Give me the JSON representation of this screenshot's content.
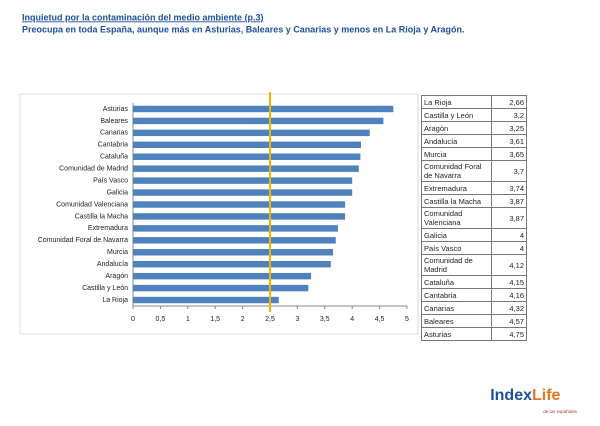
{
  "header": {
    "title": "Inquietud por la contaminación  del medio ambiente (p.3)",
    "subtitle": "Preocupa en toda España, aunque más en Asturias, Baleares y Canarias y menos en La Rioja y Aragón."
  },
  "chart_data": {
    "type": "barh",
    "color": "#4f81bd",
    "categories": [
      "Asturias",
      "Baleares",
      "Canarias",
      "Cantabria",
      "Cataluña",
      "Comunidad de Madrid",
      "País Vasco",
      "Galicia",
      "Comunidad Valenciana",
      "Castilla la Macha",
      "Extremadura",
      "Comunidad Foral de Navarra",
      "Murcia",
      "Andalucía",
      "Aragón",
      "Castilla y León",
      "La Rioja"
    ],
    "values": [
      4.75,
      4.57,
      4.32,
      4.16,
      4.15,
      4.12,
      4,
      4,
      3.87,
      3.87,
      3.74,
      3.7,
      3.65,
      3.61,
      3.25,
      3.2,
      2.66
    ],
    "xlim": [
      0,
      5
    ],
    "xticks": [
      0,
      {
        "value": 0.5,
        "label": "0,5"
      },
      1,
      {
        "value": 1.5,
        "label": "1,5"
      },
      2,
      {
        "value": 2.5,
        "label": "2,5"
      },
      3,
      {
        "value": 3.5,
        "label": "3,5"
      },
      4,
      {
        "value": 4.5,
        "label": "4,5"
      },
      5
    ],
    "reference_line": 2.5,
    "reference_color": "#f0b400",
    "grid": false
  },
  "table": {
    "rows": [
      [
        "La Rioja",
        "2,66"
      ],
      [
        "Castilla y León",
        "3,2"
      ],
      [
        "Aragón",
        "3,25"
      ],
      [
        "Andalucía",
        "3,61"
      ],
      [
        "Murcia",
        "3,65"
      ],
      [
        "Comunidad Foral de Navarra",
        "3,7"
      ],
      [
        "Extremadura",
        "3,74"
      ],
      [
        "Castilla la Macha",
        "3,87"
      ],
      [
        "Comunidad Valenciana",
        "3,87"
      ],
      [
        "Galicia",
        "4"
      ],
      [
        "País Vasco",
        "4"
      ],
      [
        "Comunidad de Madrid",
        "4,12"
      ],
      [
        "Cataluña",
        "4,15"
      ],
      [
        "Cantabria",
        "4,16"
      ],
      [
        "Canarias",
        "4,32"
      ],
      [
        "Baleares",
        "4,57"
      ],
      [
        "Asturias",
        "4,75"
      ]
    ]
  },
  "logo": {
    "index": "Index",
    "life": "Life",
    "tagline": "de los españoles"
  }
}
